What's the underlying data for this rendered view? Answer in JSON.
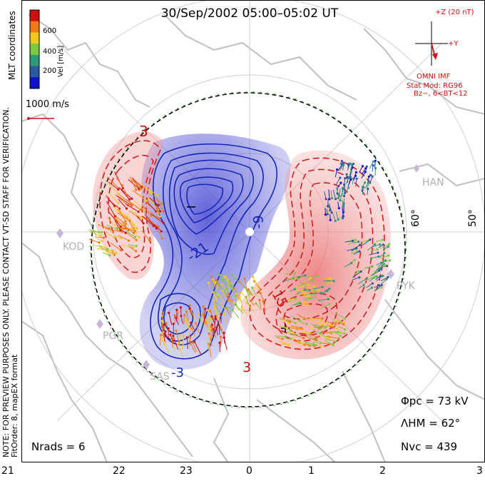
{
  "title": "30/Sep/2002 05:00–05:02 UT",
  "side_note_1": "NOTE: FOR PREVIEW PURPOSES ONLY. PLEASE CONTACT VT-SD STAFF FOR VERIFICATION.",
  "side_note_2": "FitOrder: 8, mapEX format",
  "coord_label": "MLT coordinates",
  "colorbar": {
    "label": "Vel [m/s]",
    "ticks": [
      "600",
      "400",
      "200"
    ],
    "colors": [
      "#d01010",
      "#f07818",
      "#f0c820",
      "#7cc840",
      "#2f9a7a",
      "#2a5aa0",
      "#1010d0"
    ]
  },
  "vector_scale": "1000 m/s",
  "imf": {
    "z_label": "+Z (20 nT)",
    "y_label": "+Y",
    "source": "OMNI IMF",
    "model_line1": "Stat Mod: RG96",
    "model_line2": "Bz−, 6<BT<12"
  },
  "latitude_labels": [
    "60°",
    "50°"
  ],
  "stations": [
    "HAN",
    "KOD",
    "PYK",
    "PGR",
    "SAS"
  ],
  "contour_labels": [
    "3",
    "-9",
    "-21",
    "15",
    "3",
    "-3"
  ],
  "stats": {
    "phi_pc": "Φpc  =  73 kV",
    "lambda_hm": "ΛHM  =  62°",
    "n_vc": "Nvc  =  439",
    "n_rads": "Nrads  =  6"
  },
  "mlt_labels": [
    "21",
    "22",
    "23",
    "0",
    "1",
    "2",
    "3"
  ],
  "colors": {
    "negative_cell": "#2030c0",
    "positive_cell": "#d02020",
    "boundary": "#30a030"
  }
}
